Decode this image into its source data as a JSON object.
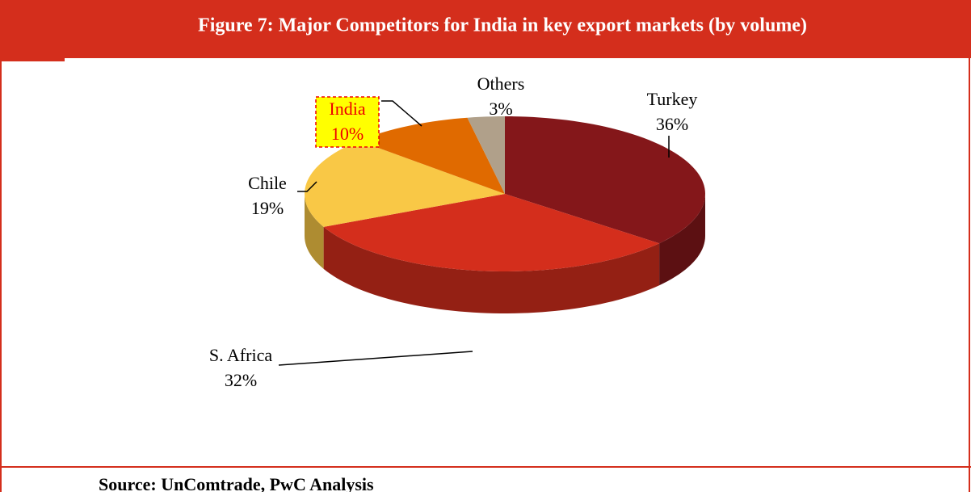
{
  "chart_data": {
    "type": "pie",
    "title": "Figure 7: Major Competitors for India in key export markets (by volume)",
    "categories": [
      "Turkey",
      "S. Africa",
      "Chile",
      "India",
      "Others"
    ],
    "values": [
      36,
      32,
      19,
      10,
      3
    ],
    "value_labels": [
      "36%",
      "32%",
      "19%",
      "10%",
      "3%"
    ],
    "colors": [
      "#84171a",
      "#d42e1c",
      "#f9c846",
      "#e06a00",
      "#b0a08a"
    ],
    "source": "Source: UnComtrade, PwC Analysis"
  }
}
